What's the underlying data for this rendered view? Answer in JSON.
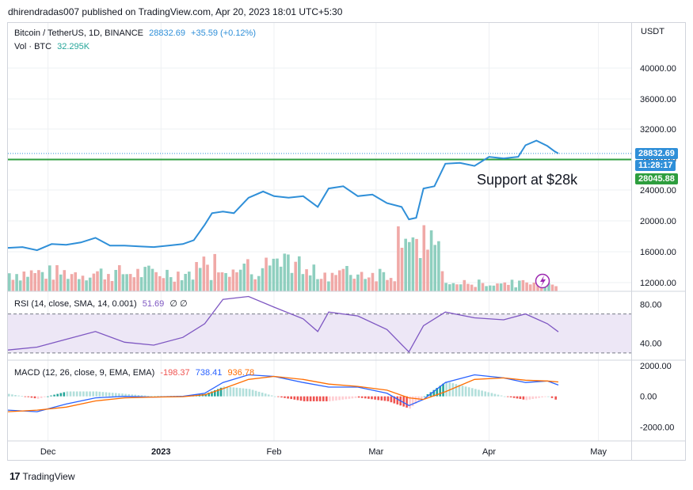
{
  "header": {
    "published": "dhirendradas007 published on TradingView.com, Apr 20, 2023 18:01 UTC+5:30"
  },
  "legend": {
    "symbol": "Bitcoin / TetherUS, 1D, BINANCE",
    "price": "28832.69",
    "change": "+35.59 (+0.12%)",
    "vol_label": "Vol · BTC",
    "vol_value": "32.295K",
    "rsi_label": "RSI (14, close, SMA, 14, 0.001)",
    "rsi_value": "51.69",
    "rsi_extra": "∅ ∅",
    "macd_label": "MACD (12, 26, close, 9, EMA, EMA)",
    "macd_hist": "-198.37",
    "macd_line": "738.41",
    "macd_signal": "936.78"
  },
  "axis": {
    "currency": "USDT",
    "price_ticks": [
      "40000.00",
      "36000.00",
      "32000.00",
      "28000.00",
      "24000.00",
      "20000.00",
      "16000.00",
      "12000.00"
    ],
    "price_tick_values": [
      40000,
      36000,
      32000,
      28000,
      24000,
      20000,
      16000,
      12000
    ],
    "rsi_ticks": [
      "80.00",
      "40.00"
    ],
    "rsi_tick_values": [
      80,
      40
    ],
    "macd_ticks": [
      "2000.00",
      "0.00",
      "-2000.00"
    ],
    "macd_tick_values": [
      2000,
      0,
      -2000
    ],
    "time_labels": [
      "Dec",
      "2023",
      "Feb",
      "Mar",
      "Apr",
      "May"
    ]
  },
  "badges": {
    "last_price": "28832.69",
    "countdown": "11:28:17",
    "support": "28045.88"
  },
  "annotation": "Support at $28k",
  "footer": {
    "brand": "TradingView"
  },
  "colors": {
    "price_line": "#2f8fd8",
    "support_line": "#2e9e3e",
    "vol_up": "#8fcfbf",
    "vol_down": "#f0a9a7",
    "rsi": "#7e57c2",
    "rsi_band": "#ede7f6",
    "macd_line": "#2962ff",
    "signal_line": "#ff6d00",
    "hist_pos_dark": "#26a69a",
    "hist_pos_light": "#b2dfdb",
    "hist_neg_dark": "#ef5350",
    "hist_neg_light": "#ffcdd2",
    "badge_price": "#2f8fd8",
    "badge_support": "#2e9e3e",
    "grid": "#eef0f3"
  },
  "chart_data": [
    {
      "type": "line",
      "title": "Bitcoin / TetherUS, 1D, BINANCE",
      "x": [
        "2022-11-20",
        "2022-11-24",
        "2022-11-28",
        "2022-12-02",
        "2022-12-06",
        "2022-12-10",
        "2022-12-14",
        "2022-12-18",
        "2022-12-22",
        "2022-12-26",
        "2022-12-30",
        "2023-01-03",
        "2023-01-07",
        "2023-01-10",
        "2023-01-13",
        "2023-01-15",
        "2023-01-18",
        "2023-01-21",
        "2023-01-25",
        "2023-01-29",
        "2023-02-01",
        "2023-02-05",
        "2023-02-09",
        "2023-02-13",
        "2023-02-16",
        "2023-02-20",
        "2023-02-24",
        "2023-02-28",
        "2023-03-04",
        "2023-03-08",
        "2023-03-10",
        "2023-03-12",
        "2023-03-14",
        "2023-03-17",
        "2023-03-20",
        "2023-03-24",
        "2023-03-28",
        "2023-04-01",
        "2023-04-05",
        "2023-04-09",
        "2023-04-11",
        "2023-04-14",
        "2023-04-17",
        "2023-04-19",
        "2023-04-20"
      ],
      "series": [
        {
          "values": [
            16500,
            16600,
            16200,
            17000,
            16900,
            17200,
            17800,
            16800,
            16800,
            16700,
            16600,
            16800,
            17000,
            17500,
            19500,
            21000,
            21200,
            21000,
            23000,
            23800,
            23200,
            23000,
            23200,
            21800,
            24200,
            24500,
            23200,
            23400,
            22300,
            21800,
            20200,
            20400,
            24200,
            24500,
            27500,
            27600,
            27200,
            28400,
            28200,
            28400,
            29900,
            30500,
            29800,
            29100,
            28832.69
          ]
        }
      ],
      "annotations": [
        "Support at $28k"
      ],
      "support_level": 28045.88,
      "last_price": 28832.69,
      "ylim": [
        11000,
        45000
      ]
    },
    {
      "type": "bar",
      "title": "Vol · BTC",
      "note": "volume bars drawn with relative heights (up=green, down=red)",
      "series": [
        {
          "name": "Vol · BTC",
          "last": "32.295K"
        }
      ]
    },
    {
      "type": "line",
      "title": "RSI (14, close, SMA, 14, 0.001)",
      "x": [
        "2022-11-20",
        "2022-11-28",
        "2022-12-06",
        "2022-12-14",
        "2022-12-22",
        "2022-12-30",
        "2023-01-07",
        "2023-01-13",
        "2023-01-18",
        "2023-01-25",
        "2023-02-01",
        "2023-02-09",
        "2023-02-13",
        "2023-02-16",
        "2023-02-24",
        "2023-03-04",
        "2023-03-10",
        "2023-03-14",
        "2023-03-20",
        "2023-03-28",
        "2023-04-05",
        "2023-04-11",
        "2023-04-17",
        "2023-04-20"
      ],
      "series": [
        {
          "values": [
            33,
            36,
            44,
            52,
            41,
            38,
            46,
            60,
            85,
            88,
            77,
            65,
            52,
            72,
            68,
            54,
            31,
            58,
            72,
            66,
            64,
            70,
            60,
            51.69
          ]
        }
      ],
      "band": [
        30,
        70
      ],
      "ylim": [
        25,
        90
      ]
    },
    {
      "type": "line",
      "title": "MACD (12, 26, close, 9, EMA, EMA)",
      "x": [
        "2022-11-20",
        "2022-11-28",
        "2022-12-06",
        "2022-12-14",
        "2022-12-22",
        "2022-12-30",
        "2023-01-07",
        "2023-01-13",
        "2023-01-18",
        "2023-01-25",
        "2023-02-01",
        "2023-02-09",
        "2023-02-16",
        "2023-02-24",
        "2023-03-04",
        "2023-03-10",
        "2023-03-14",
        "2023-03-20",
        "2023-03-28",
        "2023-04-05",
        "2023-04-11",
        "2023-04-17",
        "2023-04-20"
      ],
      "series": [
        {
          "name": "MACD",
          "values": [
            -900,
            -1000,
            -500,
            -100,
            0,
            -50,
            0,
            200,
            900,
            1400,
            1300,
            900,
            600,
            600,
            200,
            -600,
            -200,
            900,
            1400,
            1200,
            900,
            1000,
            738.41
          ]
        },
        {
          "name": "Signal",
          "values": [
            -1000,
            -900,
            -700,
            -300,
            -100,
            -50,
            -20,
            100,
            500,
            1100,
            1300,
            1100,
            800,
            650,
            400,
            -100,
            -200,
            300,
            1100,
            1200,
            1050,
            1000,
            936.78
          ]
        }
      ],
      "histogram_last": -198.37,
      "ylim": [
        -2800,
        2200
      ]
    }
  ]
}
